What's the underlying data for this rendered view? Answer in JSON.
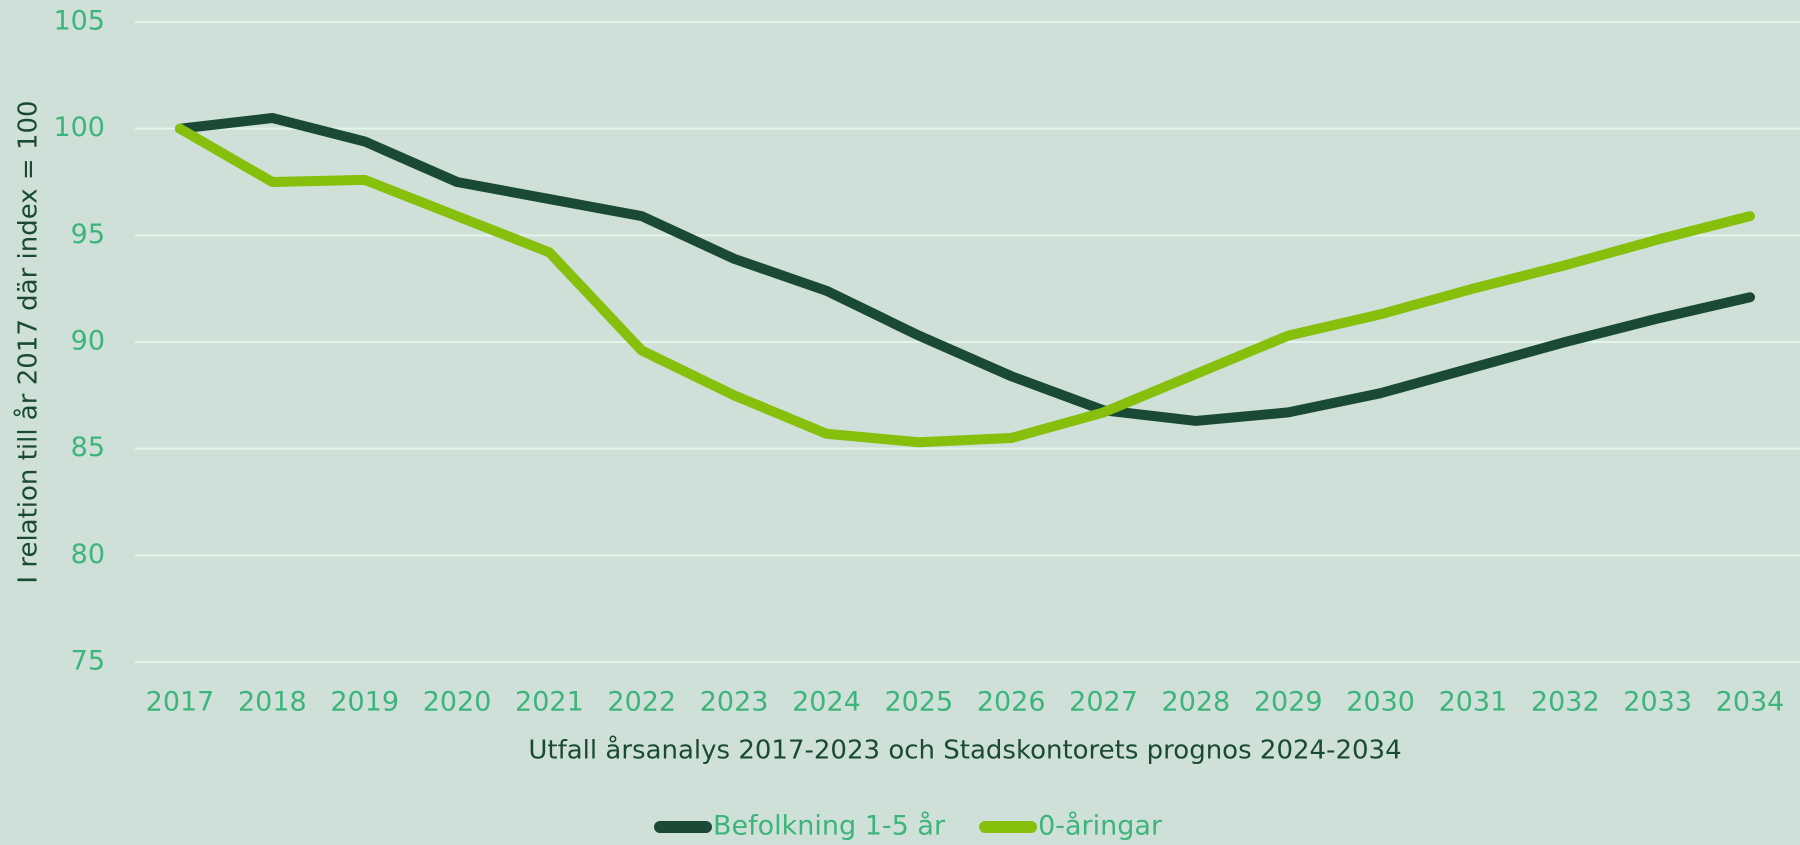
{
  "chart_data": {
    "type": "line",
    "y_label": "I relation till år 2017 där index = 100",
    "x_label": "Utfall årsanalys 2017-2023 och Stadskontorets prognos 2024-2034",
    "categories": [
      "2017",
      "2018",
      "2019",
      "2020",
      "2021",
      "2022",
      "2023",
      "2024",
      "2025",
      "2026",
      "2027",
      "2028",
      "2029",
      "2030",
      "2031",
      "2032",
      "2033",
      "2034"
    ],
    "series": [
      {
        "name": "Befolkning 1-5 år",
        "color": "#1a4a35",
        "values": [
          100,
          100.5,
          99.4,
          97.5,
          96.7,
          95.9,
          93.9,
          92.4,
          90.3,
          88.4,
          86.8,
          86.3,
          86.7,
          87.6,
          88.8,
          90.0,
          91.1,
          92.1
        ]
      },
      {
        "name": "0-åringar",
        "color": "#86bf0c",
        "values": [
          100,
          97.5,
          97.6,
          95.9,
          94.2,
          89.6,
          87.5,
          85.7,
          85.3,
          85.5,
          86.7,
          88.5,
          90.3,
          91.3,
          92.5,
          93.6,
          94.8,
          95.9
        ]
      }
    ],
    "ylim": [
      75,
      105
    ],
    "yticks": [
      75,
      80,
      85,
      90,
      95,
      100,
      105
    ],
    "grid": true,
    "legend": "bottom"
  }
}
